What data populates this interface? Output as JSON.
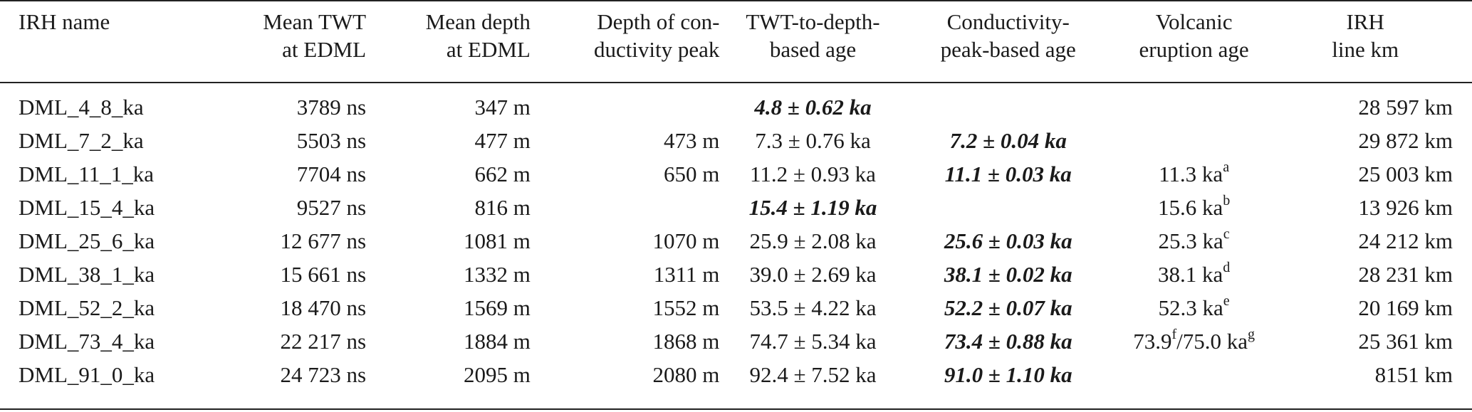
{
  "headers": [
    [
      "IRH name"
    ],
    [
      "Mean TWT",
      "at EDML"
    ],
    [
      "Mean depth",
      "at EDML"
    ],
    [
      "Depth of con-",
      "ductivity peak"
    ],
    [
      "TWT-to-depth-",
      "based age"
    ],
    [
      "Conductivity-",
      "peak-based age"
    ],
    [
      "Volcanic",
      "eruption age"
    ],
    [
      "IRH",
      "line km"
    ]
  ],
  "rows": [
    {
      "name": "DML_4_8_ka",
      "twt": "3789 ns",
      "depth": "347 m",
      "cond_depth": "",
      "twt_age": "4.8 ± 0.62 ka",
      "twt_age_bold": true,
      "cond_age": "",
      "cond_age_bold": false,
      "volc": "",
      "volc_sup": "",
      "volc2": "",
      "volc2_sup": "",
      "km": "28 597 km"
    },
    {
      "name": "DML_7_2_ka",
      "twt": "5503 ns",
      "depth": "477 m",
      "cond_depth": "473 m",
      "twt_age": "7.3 ± 0.76 ka",
      "twt_age_bold": false,
      "cond_age": "7.2 ± 0.04 ka",
      "cond_age_bold": true,
      "volc": "",
      "volc_sup": "",
      "volc2": "",
      "volc2_sup": "",
      "km": "29 872 km"
    },
    {
      "name": "DML_11_1_ka",
      "twt": "7704 ns",
      "depth": "662 m",
      "cond_depth": "650 m",
      "twt_age": "11.2 ± 0.93 ka",
      "twt_age_bold": false,
      "cond_age": "11.1 ± 0.03 ka",
      "cond_age_bold": true,
      "volc": "11.3 ka",
      "volc_sup": "a",
      "volc2": "",
      "volc2_sup": "",
      "km": "25 003 km"
    },
    {
      "name": "DML_15_4_ka",
      "twt": "9527 ns",
      "depth": "816 m",
      "cond_depth": "",
      "twt_age": "15.4 ± 1.19 ka",
      "twt_age_bold": true,
      "cond_age": "",
      "cond_age_bold": false,
      "volc": "15.6 ka",
      "volc_sup": "b",
      "volc2": "",
      "volc2_sup": "",
      "km": "13 926 km"
    },
    {
      "name": "DML_25_6_ka",
      "twt": "12 677 ns",
      "depth": "1081 m",
      "cond_depth": "1070 m",
      "twt_age": "25.9 ± 2.08 ka",
      "twt_age_bold": false,
      "cond_age": "25.6 ± 0.03 ka",
      "cond_age_bold": true,
      "volc": "25.3 ka",
      "volc_sup": "c",
      "volc2": "",
      "volc2_sup": "",
      "km": "24 212 km"
    },
    {
      "name": "DML_38_1_ka",
      "twt": "15 661 ns",
      "depth": "1332 m",
      "cond_depth": "1311 m",
      "twt_age": "39.0 ± 2.69 ka",
      "twt_age_bold": false,
      "cond_age": "38.1 ± 0.02 ka",
      "cond_age_bold": true,
      "volc": "38.1 ka",
      "volc_sup": "d",
      "volc2": "",
      "volc2_sup": "",
      "km": "28 231 km"
    },
    {
      "name": "DML_52_2_ka",
      "twt": "18 470 ns",
      "depth": "1569 m",
      "cond_depth": "1552 m",
      "twt_age": "53.5 ± 4.22 ka",
      "twt_age_bold": false,
      "cond_age": "52.2 ± 0.07 ka",
      "cond_age_bold": true,
      "volc": "52.3 ka",
      "volc_sup": "e",
      "volc2": "",
      "volc2_sup": "",
      "km": "20 169 km"
    },
    {
      "name": "DML_73_4_ka",
      "twt": "22 217 ns",
      "depth": "1884 m",
      "cond_depth": "1868 m",
      "twt_age": "74.7 ± 5.34 ka",
      "twt_age_bold": false,
      "cond_age": "73.4 ± 0.88 ka",
      "cond_age_bold": true,
      "volc": "73.9",
      "volc_sup": "f",
      "volc2": "/75.0 ka",
      "volc2_sup": "g",
      "km": "25 361 km"
    },
    {
      "name": "DML_91_0_ka",
      "twt": "24 723 ns",
      "depth": "2095 m",
      "cond_depth": "2080 m",
      "twt_age": "92.4 ± 7.52 ka",
      "twt_age_bold": false,
      "cond_age": "91.0 ± 1.10 ka",
      "cond_age_bold": true,
      "volc": "",
      "volc_sup": "",
      "volc2": "",
      "volc2_sup": "",
      "km": "8151 km"
    }
  ]
}
